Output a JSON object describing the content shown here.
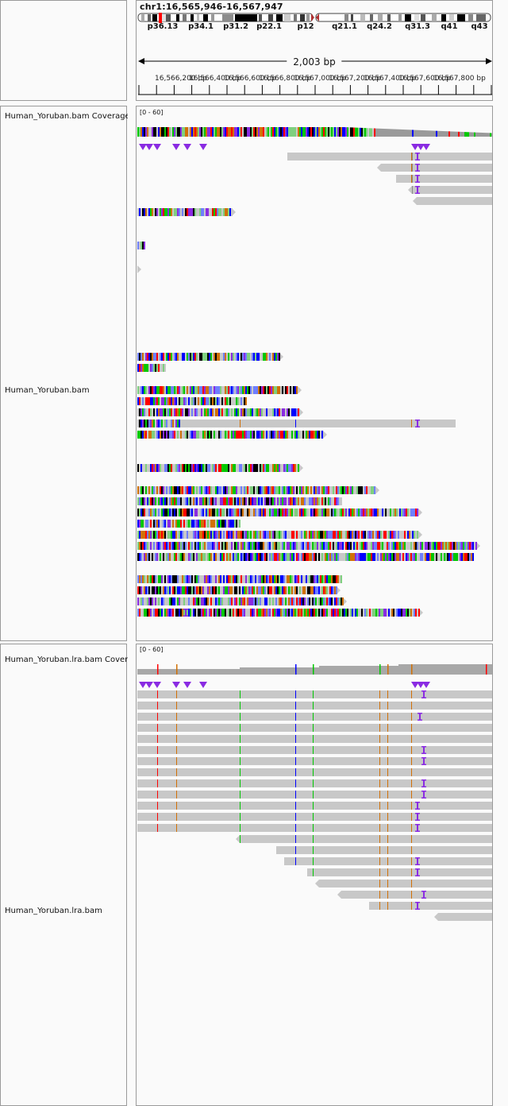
{
  "locus": "chr1:16,565,946-16,567,947",
  "ideogram": {
    "bands": [
      "p36.13",
      "p34.1",
      "p31.2",
      "p22.1",
      "p12",
      "q21.1",
      "q24.2",
      "q31.3",
      "q41",
      "q43"
    ],
    "colors": {
      "highlight": "#ff0000",
      "dark": "#000000",
      "gray": "#8c8c8c",
      "centromere": "#b03030"
    }
  },
  "ruler": {
    "span": "2,003 bp",
    "ticks": [
      "16,566,200 bp",
      "16,566,400 bp",
      "16,566,600 bp",
      "16,566,800 bp",
      "16,567,000 bp",
      "16,567,200 bp",
      "16,567,400 bp",
      "16,567,600 bp",
      "16,567,800 bp"
    ]
  },
  "tracks": {
    "bam_coverage": {
      "name": "Human_Yoruban.bam Coverage",
      "range": "[0 - 60]"
    },
    "bam": {
      "name": "Human_Yoruban.bam"
    },
    "lra_coverage": {
      "name": "Human_Yoruban.lra.bam Coverage",
      "range": "[0 - 60]"
    },
    "lra": {
      "name": "Human_Yoruban.lra.bam"
    }
  },
  "colors": {
    "read": "#c8c8c8",
    "insertion": "#8a2be2",
    "base_A": "#00c800",
    "base_C": "#0000ff",
    "base_G": "#d17105",
    "base_T": "#ff0000"
  }
}
